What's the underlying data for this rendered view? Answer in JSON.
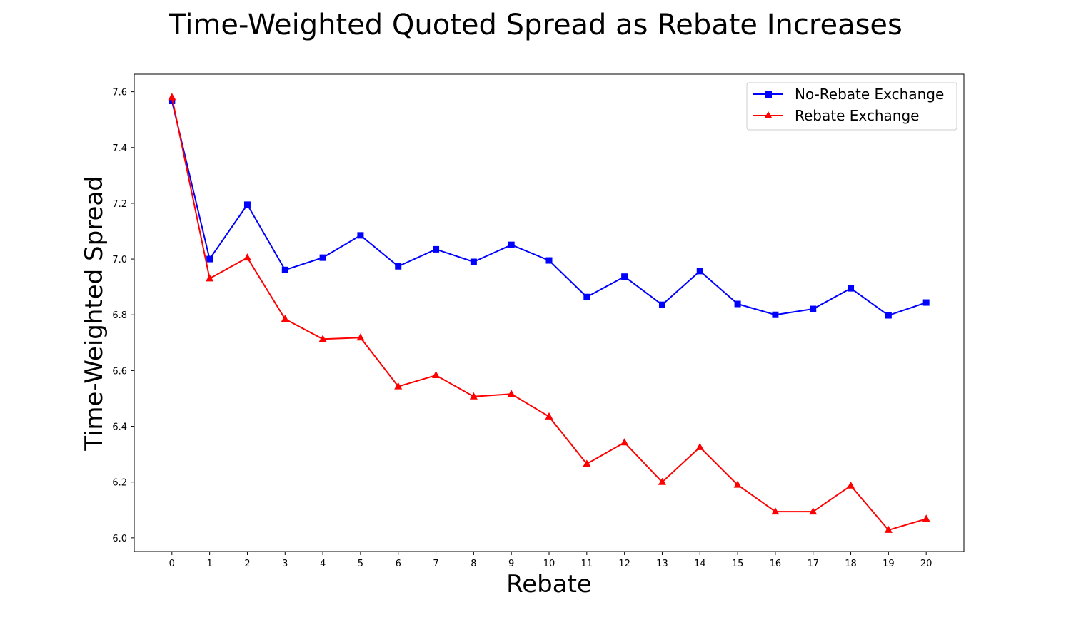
{
  "chart_data": {
    "type": "line",
    "title": "Time-Weighted Quoted Spread as Rebate Increases",
    "xlabel": "Rebate",
    "ylabel": "Time-Weighted Spread",
    "x": [
      0,
      1,
      2,
      3,
      4,
      5,
      6,
      7,
      8,
      9,
      10,
      11,
      12,
      13,
      14,
      15,
      16,
      17,
      18,
      19,
      20
    ],
    "x_ticks": [
      "0",
      "1",
      "2",
      "3",
      "4",
      "5",
      "6",
      "7",
      "8",
      "9",
      "10",
      "11",
      "12",
      "13",
      "14",
      "15",
      "16",
      "17",
      "18",
      "19",
      "20"
    ],
    "y_ticks": [
      "6.0",
      "6.2",
      "6.4",
      "6.6",
      "6.8",
      "7.0",
      "7.2",
      "7.4",
      "7.6"
    ],
    "xlim": [
      -1,
      21
    ],
    "ylim": [
      5.951,
      7.663
    ],
    "grid": false,
    "legend_position": "top-right",
    "series": [
      {
        "name": "No-Rebate Exchange",
        "color": "#0000ff",
        "marker": "square",
        "values": [
          7.567,
          7.0,
          7.195,
          6.961,
          7.005,
          7.085,
          6.974,
          7.035,
          6.99,
          7.051,
          6.995,
          6.864,
          6.937,
          6.836,
          6.957,
          6.839,
          6.8,
          6.821,
          6.895,
          6.798,
          6.844
        ]
      },
      {
        "name": "Rebate Exchange",
        "color": "#ff0000",
        "marker": "triangle",
        "values": [
          7.58,
          6.93,
          7.005,
          6.785,
          6.713,
          6.718,
          6.543,
          6.583,
          6.507,
          6.516,
          6.435,
          6.265,
          6.342,
          6.2,
          6.325,
          6.19,
          6.094,
          6.094,
          6.187,
          6.028,
          6.068
        ]
      }
    ]
  }
}
